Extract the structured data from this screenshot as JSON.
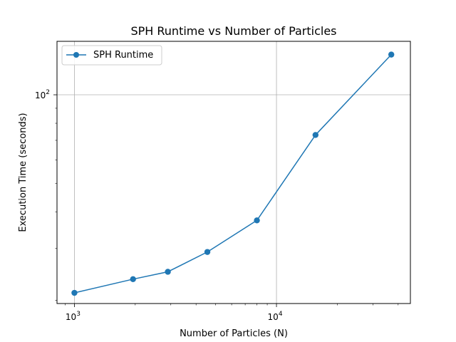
{
  "chart_data": {
    "type": "line",
    "title": "SPH Runtime vs Number of Particles",
    "xlabel": "Number of Particles (N)",
    "ylabel": "Execution Time (seconds)",
    "x_scale": "log",
    "y_scale": "log",
    "xlim": [
      820,
      46000
    ],
    "ylim": [
      19.5,
      152
    ],
    "x_major_ticks": [
      {
        "value": 1000,
        "base": "10",
        "exp": "3"
      },
      {
        "value": 10000,
        "base": "10",
        "exp": "4"
      }
    ],
    "y_major_ticks": [
      {
        "value": 100,
        "base": "10",
        "exp": "2"
      }
    ],
    "grid": true,
    "legend_position": "upper-left",
    "series": [
      {
        "name": "SPH Runtime",
        "color": "#1f77b4",
        "marker": "circle",
        "x": [
          1000,
          1950,
          2900,
          4550,
          8000,
          15600,
          37000
        ],
        "y": [
          21.2,
          23.6,
          25.0,
          29.2,
          37.4,
          73.0,
          137.0
        ]
      }
    ]
  }
}
